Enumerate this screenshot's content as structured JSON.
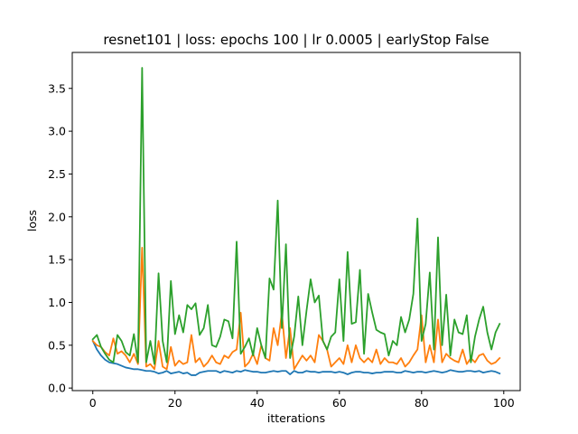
{
  "chart_data": {
    "type": "line",
    "title": "resnet101 |  loss: epochs 100 | lr 0.0005 | earlyStop False",
    "xlabel": "itterations",
    "ylabel": "loss",
    "xlim": [
      -5,
      104
    ],
    "ylim": [
      -0.03,
      3.92
    ],
    "xticks": [
      0,
      20,
      40,
      60,
      80,
      100
    ],
    "yticks": [
      0.0,
      0.5,
      1.0,
      1.5,
      2.0,
      2.5,
      3.0,
      3.5
    ],
    "grid": false,
    "series": [
      {
        "color": "#1f77b4",
        "values": [
          0.55,
          0.45,
          0.38,
          0.33,
          0.3,
          0.29,
          0.28,
          0.26,
          0.24,
          0.23,
          0.22,
          0.22,
          0.21,
          0.2,
          0.2,
          0.19,
          0.17,
          0.18,
          0.2,
          0.17,
          0.18,
          0.19,
          0.17,
          0.18,
          0.15,
          0.15,
          0.18,
          0.19,
          0.2,
          0.2,
          0.2,
          0.18,
          0.2,
          0.19,
          0.18,
          0.2,
          0.19,
          0.21,
          0.2,
          0.19,
          0.19,
          0.18,
          0.18,
          0.19,
          0.2,
          0.19,
          0.2,
          0.2,
          0.16,
          0.2,
          0.18,
          0.18,
          0.2,
          0.19,
          0.19,
          0.18,
          0.19,
          0.19,
          0.19,
          0.18,
          0.19,
          0.18,
          0.16,
          0.18,
          0.19,
          0.19,
          0.18,
          0.18,
          0.17,
          0.18,
          0.18,
          0.19,
          0.19,
          0.19,
          0.18,
          0.18,
          0.2,
          0.19,
          0.18,
          0.19,
          0.19,
          0.18,
          0.19,
          0.2,
          0.19,
          0.18,
          0.19,
          0.21,
          0.2,
          0.19,
          0.19,
          0.2,
          0.2,
          0.19,
          0.2,
          0.18,
          0.19,
          0.2,
          0.19,
          0.17
        ]
      },
      {
        "color": "#ff7f0e",
        "values": [
          0.55,
          0.5,
          0.48,
          0.42,
          0.38,
          0.58,
          0.4,
          0.43,
          0.38,
          0.3,
          0.4,
          0.28,
          1.64,
          0.25,
          0.28,
          0.22,
          0.55,
          0.25,
          0.22,
          0.48,
          0.26,
          0.32,
          0.28,
          0.3,
          0.62,
          0.3,
          0.35,
          0.25,
          0.3,
          0.38,
          0.3,
          0.28,
          0.38,
          0.35,
          0.42,
          0.45,
          0.88,
          0.25,
          0.3,
          0.4,
          0.28,
          0.5,
          0.35,
          0.32,
          0.7,
          0.5,
          0.88,
          0.35,
          0.7,
          0.22,
          0.3,
          0.38,
          0.32,
          0.38,
          0.3,
          0.62,
          0.55,
          0.45,
          0.25,
          0.3,
          0.35,
          0.28,
          0.5,
          0.3,
          0.5,
          0.35,
          0.3,
          0.35,
          0.3,
          0.45,
          0.28,
          0.35,
          0.3,
          0.3,
          0.28,
          0.35,
          0.25,
          0.3,
          0.38,
          0.45,
          0.85,
          0.3,
          0.5,
          0.3,
          0.8,
          0.3,
          0.4,
          0.35,
          0.32,
          0.3,
          0.45,
          0.28,
          0.35,
          0.3,
          0.38,
          0.4,
          0.32,
          0.28,
          0.3,
          0.35
        ]
      },
      {
        "color": "#2ca02c",
        "values": [
          0.57,
          0.62,
          0.48,
          0.4,
          0.33,
          0.3,
          0.62,
          0.55,
          0.42,
          0.38,
          0.63,
          0.3,
          3.74,
          0.3,
          0.55,
          0.28,
          1.34,
          0.55,
          0.3,
          1.25,
          0.63,
          0.85,
          0.65,
          0.97,
          0.92,
          0.99,
          0.62,
          0.7,
          0.97,
          0.5,
          0.48,
          0.6,
          0.8,
          0.78,
          0.58,
          1.71,
          0.4,
          0.48,
          0.58,
          0.38,
          0.7,
          0.5,
          0.35,
          1.28,
          1.15,
          2.19,
          0.7,
          1.68,
          0.35,
          0.6,
          1.07,
          0.5,
          0.9,
          1.27,
          1.0,
          1.08,
          0.55,
          0.45,
          0.6,
          0.65,
          1.27,
          0.55,
          1.59,
          0.75,
          0.77,
          1.38,
          0.4,
          1.1,
          0.88,
          0.68,
          0.65,
          0.63,
          0.38,
          0.55,
          0.5,
          0.83,
          0.65,
          0.8,
          1.1,
          1.98,
          0.55,
          0.75,
          1.35,
          0.45,
          1.76,
          0.5,
          1.09,
          0.38,
          0.8,
          0.65,
          0.63,
          0.85,
          0.3,
          0.6,
          0.8,
          0.95,
          0.65,
          0.45,
          0.65,
          0.75
        ]
      }
    ]
  }
}
